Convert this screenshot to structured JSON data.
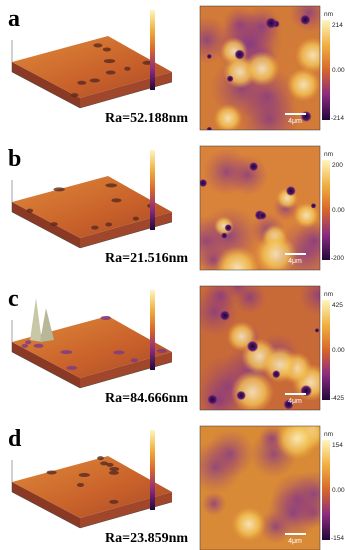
{
  "panels": [
    {
      "label": "a",
      "ra": "Ra=52.188nm",
      "colorbar": {
        "unit": "nm",
        "max": "214",
        "mid": "0.00",
        "min": "-214"
      },
      "scale_bar": "4μm"
    },
    {
      "label": "b",
      "ra": "Ra=21.516nm",
      "colorbar": {
        "unit": "nm",
        "max": "200",
        "mid": "0.00",
        "min": "-200"
      },
      "scale_bar": "4μm"
    },
    {
      "label": "c",
      "ra": "Ra=84.666nm",
      "colorbar": {
        "unit": "nm",
        "max": "425",
        "mid": "0.00",
        "min": "-425"
      },
      "scale_bar": "4μm"
    },
    {
      "label": "d",
      "ra": "Ra=23.859nm",
      "colorbar": {
        "unit": "nm",
        "max": "154",
        "mid": "0.00",
        "min": "-154"
      },
      "scale_bar": "4μm"
    }
  ]
}
